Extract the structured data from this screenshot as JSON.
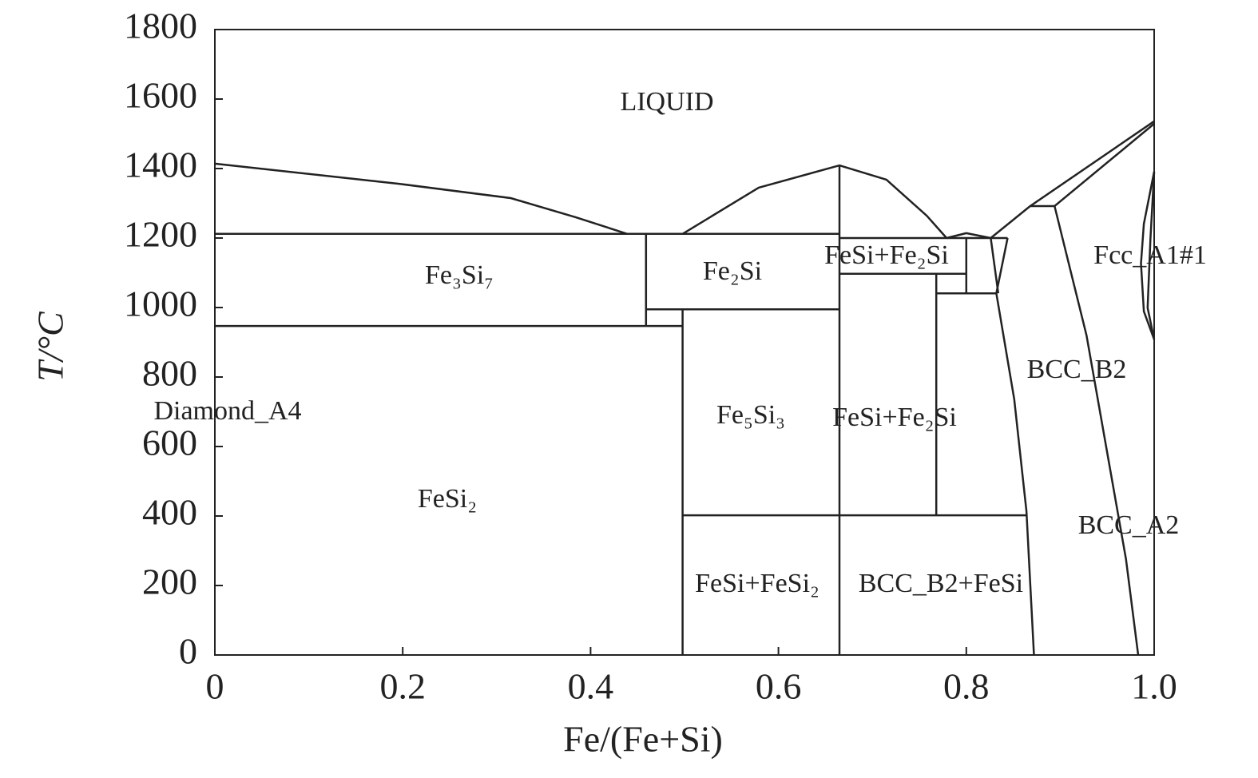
{
  "chart_data": {
    "type": "line",
    "color": "#222222",
    "xlabel": "Fe/(Fe+Si)",
    "ylabel": "T/°C",
    "xlim": [
      0,
      1
    ],
    "ylim": [
      0,
      1800
    ],
    "xticks": [
      0,
      0.2,
      0.4,
      0.6,
      0.8,
      {
        "value": 1,
        "label": "1.0"
      }
    ],
    "yticks": [
      0,
      200,
      400,
      600,
      800,
      1000,
      1200,
      1400,
      1600,
      1800
    ],
    "annotations": [
      "LIQUID",
      "Fe₃Si₇",
      "Fe₂Si",
      "FeSi+Fe₂Si",
      "Fcc_A1#1",
      "BCC_B2",
      "Diamond_A4",
      "Fe₅Si₃",
      "FeSi+Fe₂Si",
      "FeSi₂",
      "BCC_A2",
      "FeSi+FeSi₂",
      "BCC_B2+FeSi"
    ],
    "series": [
      {
        "x": [
          0,
          0.196,
          0.315,
          0.384,
          0.439
        ],
        "values": [
          1414,
          1356,
          1315,
          1260,
          1212
        ]
      },
      {
        "x": [
          0,
          0.665
        ],
        "values": [
          1212,
          1212
        ]
      },
      {
        "x": [
          0.498,
          0.579,
          0.665,
          0.715,
          0.758,
          0.779
        ],
        "values": [
          1212,
          1345,
          1409,
          1368,
          1264,
          1200
        ]
      },
      {
        "x": [
          0.779,
          0.8,
          0.826
        ],
        "values": [
          1200,
          1214,
          1200
        ]
      },
      {
        "x": [
          0.826,
          0.868,
          1
        ],
        "values": [
          1200,
          1292,
          1536
        ]
      },
      {
        "x": [
          0.894,
          1
        ],
        "values": [
          1292,
          1529
        ]
      },
      {
        "x": [
          0.868,
          0.894
        ],
        "values": [
          1292,
          1292
        ]
      },
      {
        "x": [
          0.894,
          0.928,
          0.97,
          0.983
        ],
        "values": [
          1292,
          920,
          276,
          0
        ]
      },
      {
        "x": [
          0.844,
          0.832,
          0.851,
          0.864,
          0.872
        ],
        "values": [
          1200,
          1041,
          736,
          414,
          0
        ]
      },
      {
        "x": [
          0.826,
          0.834
        ],
        "values": [
          1200,
          1041
        ]
      },
      {
        "x": [
          0.8,
          0.8
        ],
        "values": [
          1200,
          1041
        ]
      },
      {
        "x": [
          0.768,
          0.832
        ],
        "values": [
          1041,
          1041
        ]
      },
      {
        "x": [
          0.665,
          0.8
        ],
        "values": [
          1097,
          1097
        ]
      },
      {
        "x": [
          0.768,
          0.768
        ],
        "values": [
          1097,
          402
        ]
      },
      {
        "x": [
          0.665,
          0.844
        ],
        "values": [
          1200,
          1200
        ]
      },
      {
        "x": [
          0.459,
          0.459
        ],
        "values": [
          1212,
          947
        ]
      },
      {
        "x": [
          0.459,
          0.665
        ],
        "values": [
          995,
          995
        ]
      },
      {
        "x": [
          0,
          0.498
        ],
        "values": [
          947,
          947
        ]
      },
      {
        "x": [
          0.498,
          0.498
        ],
        "values": [
          995,
          0
        ]
      },
      {
        "x": [
          0.665,
          0.665
        ],
        "values": [
          1409,
          0
        ]
      },
      {
        "x": [
          0.498,
          0.864
        ],
        "values": [
          402,
          402
        ]
      },
      {
        "x": [
          1,
          0.989,
          0.986,
          0.989,
          1
        ],
        "values": [
          1391,
          1241,
          1127,
          989,
          908
        ]
      },
      {
        "x": [
          1,
          0.996,
          0.993,
          1
        ],
        "values": [
          1391,
          1196,
          999,
          908
        ]
      }
    ]
  }
}
